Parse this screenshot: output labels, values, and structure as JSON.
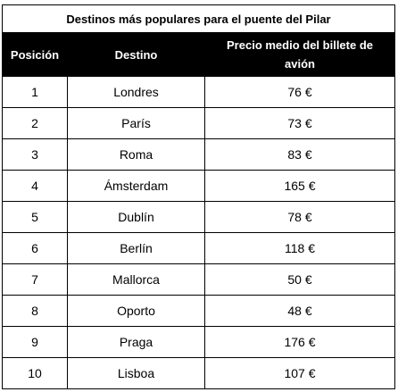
{
  "table": {
    "caption": "Destinos más populares para el puente del Pilar",
    "headers": [
      "Posición",
      "Destino",
      "Precio medio del billete de avión"
    ],
    "rows": [
      [
        "1",
        "Londres",
        "76 €"
      ],
      [
        "2",
        "París",
        "73 €"
      ],
      [
        "3",
        "Roma",
        "83 €"
      ],
      [
        "4",
        "Ámsterdam",
        "165 €"
      ],
      [
        "5",
        "Dublín",
        "78 €"
      ],
      [
        "6",
        "Berlín",
        "118 €"
      ],
      [
        "7",
        "Mallorca",
        "50 €"
      ],
      [
        "8",
        "Oporto",
        "48 €"
      ],
      [
        "9",
        "Praga",
        "176 €"
      ],
      [
        "10",
        "Lisboa",
        "107 €"
      ]
    ]
  }
}
